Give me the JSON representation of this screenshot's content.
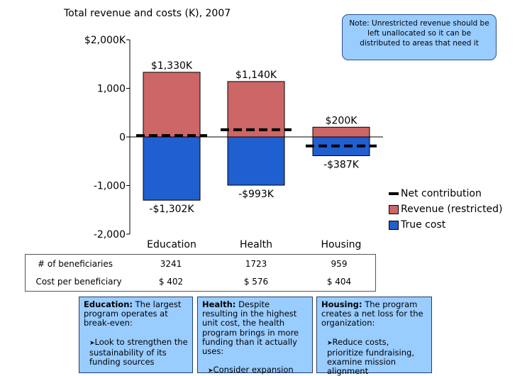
{
  "chart_data": {
    "type": "bar",
    "title": "Total revenue and costs (K), 2007",
    "categories": [
      "Education",
      "Health",
      "Housing"
    ],
    "series": [
      {
        "name": "Revenue (restricted)",
        "values": [
          1330,
          1140,
          200
        ],
        "color": "#cd6666"
      },
      {
        "name": "True cost",
        "values": [
          -1302,
          -993,
          -387
        ],
        "color": "#1f5fd0"
      },
      {
        "name": "Net contribution",
        "values": [
          28,
          147,
          -187
        ],
        "color": "#000000"
      }
    ],
    "data_labels": {
      "revenue": [
        "$1,330K",
        "$1,140K",
        "$200K"
      ],
      "cost": [
        "-$1,302K",
        "-$993K",
        "-$387K"
      ]
    },
    "yticks": [
      {
        "value": 2000,
        "label": "$2,000K"
      },
      {
        "value": 1000,
        "label": "1,000"
      },
      {
        "value": 0,
        "label": "0"
      },
      {
        "value": -1000,
        "label": "-1,000"
      },
      {
        "value": -2000,
        "label": "-2,000"
      }
    ],
    "ylim": [
      -2000,
      2000
    ],
    "grid": false,
    "legend_position": "right"
  },
  "note": "Note: Unrestricted revenue should be left unallocated so it can be distributed to areas that need it",
  "legend": [
    {
      "label": "Net contribution",
      "kind": "dash",
      "color": "#000000"
    },
    {
      "label": "Revenue (restricted)",
      "kind": "box",
      "color": "#cd6666"
    },
    {
      "label": "True cost",
      "kind": "box",
      "color": "#1f5fd0"
    }
  ],
  "stats_table": {
    "rows": [
      {
        "label": "# of beneficiaries",
        "values": [
          "3241",
          "1723",
          "959"
        ]
      },
      {
        "label": "Cost per beneficiary",
        "values": [
          "$ 402",
          "$ 576",
          "$ 404"
        ]
      }
    ]
  },
  "boxes": [
    {
      "title": "Education:",
      "text": "The largest program operates at break-even:",
      "bullet": "Look to strengthen the sustainability of its funding sources"
    },
    {
      "title": "Health:",
      "text": "Despite resulting in the highest unit cost, the health program brings in more funding than it actually uses:",
      "bullet": "Consider expansion"
    },
    {
      "title": "Housing:",
      "text": "The program creates a net loss for the organization:",
      "bullet": "Reduce costs, prioritize fundraising, examine mission alignment"
    }
  ]
}
